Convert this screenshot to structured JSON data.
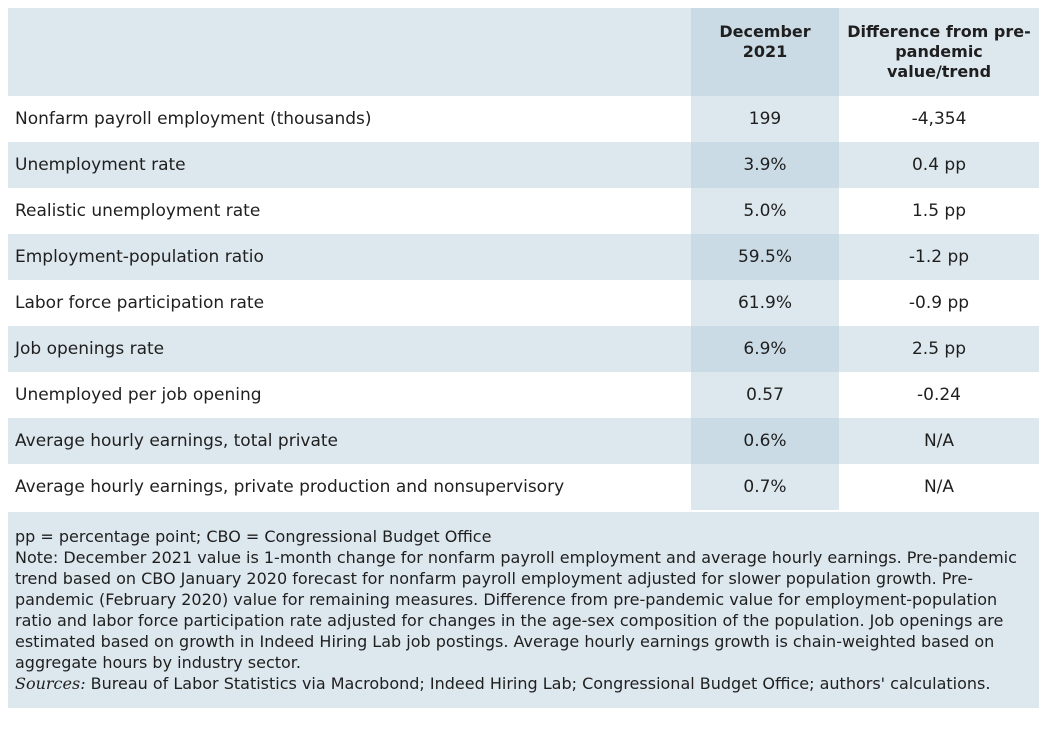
{
  "header": {
    "label": "",
    "december": "December 2021",
    "difference": "Difference from pre-pandemic value/trend"
  },
  "rows": [
    {
      "label": "Nonfarm payroll employment (thousands)",
      "december": "199",
      "difference": "-4,354"
    },
    {
      "label": "Unemployment rate",
      "december": "3.9%",
      "difference": "0.4 pp"
    },
    {
      "label": "Realistic unemployment rate",
      "december": "5.0%",
      "difference": "1.5 pp"
    },
    {
      "label": "Employment-population ratio",
      "december": "59.5%",
      "difference": "-1.2 pp"
    },
    {
      "label": "Labor force participation rate",
      "december": "61.9%",
      "difference": "-0.9 pp"
    },
    {
      "label": "Job openings rate",
      "december": "6.9%",
      "difference": "2.5 pp"
    },
    {
      "label": "Unemployed per job opening",
      "december": "0.57",
      "difference": "-0.24"
    },
    {
      "label": "Average hourly earnings, total private",
      "december": "0.6%",
      "difference": "N/A"
    },
    {
      "label": "Average hourly earnings, private production and nonsupervisory",
      "december": "0.7%",
      "difference": "N/A"
    }
  ],
  "notes": {
    "abbreviations": "pp = percentage point; CBO = Congressional Budget Office",
    "note": "Note: December 2021 value is 1-month change for nonfarm payroll employment and average hourly earnings. Pre-pandemic trend based on CBO January 2020 forecast for nonfarm payroll employment adjusted for slower population growth. Pre-pandemic (February 2020) value for remaining measures. Difference from pre-pandemic value for employment-population ratio and labor force participation rate adjusted for changes in the age-sex composition of the population. Job openings are estimated based on growth in Indeed Hiring Lab job postings. Average hourly earnings growth is chain-weighted based on aggregate hours by industry sector.",
    "sources_label": "Sources:",
    "sources_text": " Bureau of Labor Statistics via Macrobond; Indeed Hiring Lab; Congressional Budget Office; authors' calculations."
  },
  "colors": {
    "header_bg": "#dde7ee",
    "december_column_bg": "#cadbe6",
    "stripe_bg": "#dde7ee"
  }
}
